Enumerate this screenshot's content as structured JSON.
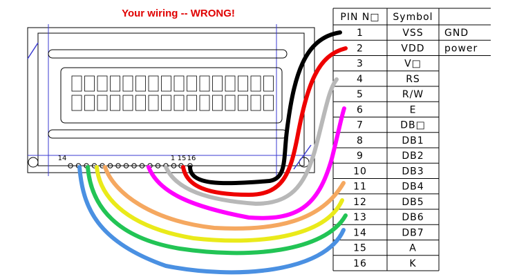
{
  "title": "Your wiring -- WRONG!",
  "lcd": {
    "pin_labels": [
      "14",
      "1",
      "15",
      "16"
    ]
  },
  "table": {
    "header": [
      "PIN N□",
      "Symbol"
    ],
    "rows": [
      {
        "pin": "1",
        "symbol": "VSS",
        "note": "GND"
      },
      {
        "pin": "2",
        "symbol": "VDD",
        "note": "power"
      },
      {
        "pin": "3",
        "symbol": "V□"
      },
      {
        "pin": "4",
        "symbol": "RS"
      },
      {
        "pin": "5",
        "symbol": "R/W"
      },
      {
        "pin": "6",
        "symbol": "E"
      },
      {
        "pin": "7",
        "symbol": "DB□"
      },
      {
        "pin": "8",
        "symbol": "DB1"
      },
      {
        "pin": "9",
        "symbol": "DB2"
      },
      {
        "pin": "10",
        "symbol": "DB3"
      },
      {
        "pin": "11",
        "symbol": "DB4"
      },
      {
        "pin": "12",
        "symbol": "DB5"
      },
      {
        "pin": "13",
        "symbol": "DB6"
      },
      {
        "pin": "14",
        "symbol": "DB7"
      },
      {
        "pin": "15",
        "symbol": "A"
      },
      {
        "pin": "16",
        "symbol": "K"
      }
    ]
  }
}
